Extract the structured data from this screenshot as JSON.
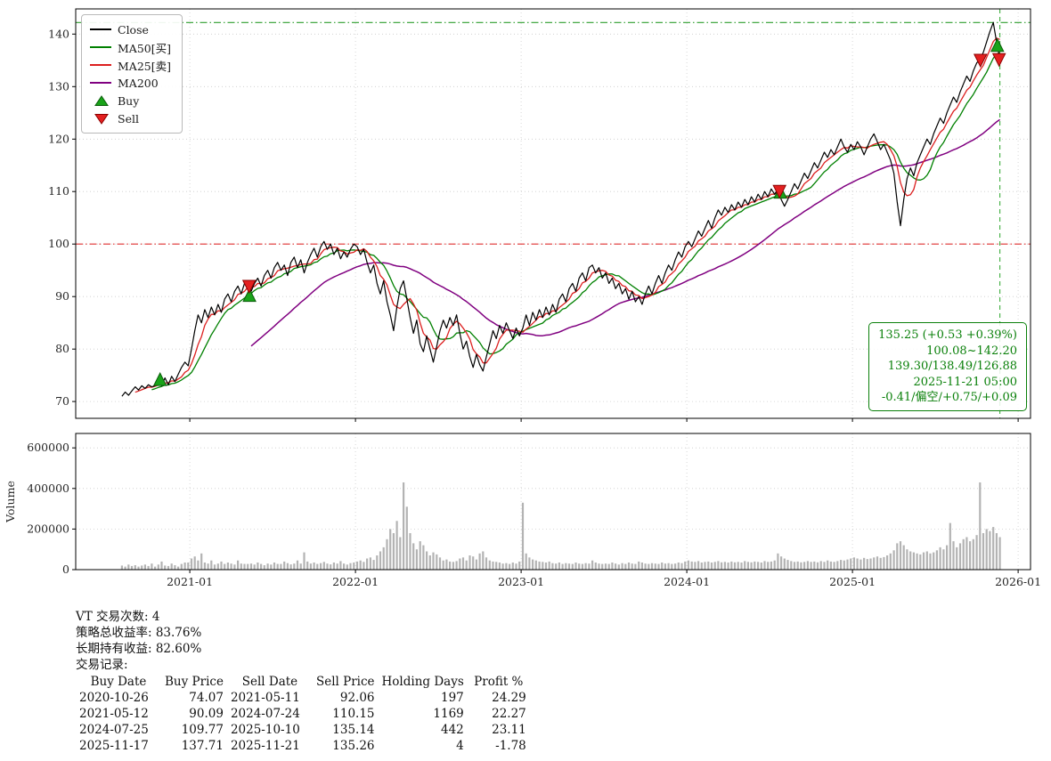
{
  "chart_data": {
    "type": "line",
    "x_axis": {
      "range": [
        2020.311,
        2026.075
      ],
      "ticks": [
        2021,
        2022,
        2023,
        2024,
        2025,
        2026
      ],
      "tick_labels": [
        "2021-01",
        "2022-01",
        "2023-01",
        "2024-01",
        "2025-01",
        "2026-01"
      ]
    },
    "price_axis": {
      "range": [
        66.8,
        144.8
      ],
      "ticks": [
        70,
        80,
        90,
        100,
        110,
        120,
        130,
        140
      ]
    },
    "volume_axis": {
      "range": [
        0,
        671000
      ],
      "ticks": [
        0,
        200000,
        400000,
        600000
      ],
      "tick_labels": [
        "0",
        "200000",
        "400000",
        "600000"
      ],
      "label": "Volume"
    },
    "x_start": 2020.59,
    "x_step": 0.02,
    "volume_scale": 1000,
    "ma_windows": {
      "ma25": 5,
      "ma50": 10,
      "ma200": 40
    },
    "reference_lines": {
      "upper": 142.2,
      "lower": 100.0,
      "vertical_x": 2025.89
    },
    "colors": {
      "close": "#000000",
      "ma50": "#008000",
      "ma25": "#dc1f1f",
      "ma200": "#800080",
      "buy": "#19a319",
      "buy_edge": "#0a5c0a",
      "sell": "#e32020",
      "sell_edge": "#8b0000",
      "volume": "#b3b3b3",
      "ref_upper": "#2e9e2e",
      "ref_lower": "#e03030",
      "vline": "#3faf3f",
      "grid": "#cccccc"
    },
    "legend": [
      {
        "label": "Close",
        "marker": "line",
        "color": "#000000"
      },
      {
        "label": "MA50[买]",
        "marker": "line",
        "color": "#008000"
      },
      {
        "label": "MA25[卖]",
        "marker": "line",
        "color": "#dc1f1f"
      },
      {
        "label": "MA200",
        "marker": "line",
        "color": "#800080"
      },
      {
        "label": "Buy",
        "marker": "triangle-up",
        "color": "#19a319",
        "edge": "#0a5c0a"
      },
      {
        "label": "Sell",
        "marker": "triangle-down",
        "color": "#e32020",
        "edge": "#8b0000"
      }
    ],
    "markers": {
      "buys": [
        [
          2020.82,
          74.07
        ],
        [
          2021.36,
          90.09
        ],
        [
          2024.565,
          109.77
        ],
        [
          2025.875,
          137.71
        ]
      ],
      "sells": [
        [
          2021.358,
          92.06
        ],
        [
          2024.56,
          110.15
        ],
        [
          2025.773,
          135.14
        ],
        [
          2025.885,
          135.26
        ]
      ]
    },
    "annotation": {
      "lines": [
        "135.25 (+0.53 +0.39%)",
        "100.08~142.20",
        "139.30/138.49/126.88",
        "2025-11-21 05:00",
        "-0.41/偏空/+0.75/+0.09"
      ]
    },
    "close": [
      71.0,
      71.8,
      71.2,
      72.0,
      72.8,
      72.2,
      73.0,
      72.5,
      73.2,
      72.8,
      73.0,
      74.2,
      73.0,
      74.5,
      73.2,
      74.8,
      73.8,
      75.2,
      76.5,
      77.5,
      76.8,
      80.0,
      83.5,
      86.5,
      85.0,
      87.5,
      86.0,
      88.0,
      86.5,
      88.5,
      87.0,
      89.5,
      90.5,
      89.0,
      91.0,
      92.0,
      90.5,
      92.5,
      93.0,
      91.0,
      92.5,
      93.5,
      92.0,
      94.0,
      95.0,
      93.5,
      95.5,
      96.5,
      95.0,
      96.0,
      94.0,
      96.5,
      97.5,
      95.5,
      97.0,
      94.5,
      96.5,
      98.0,
      99.2,
      97.5,
      99.5,
      100.5,
      99.0,
      100.0,
      98.0,
      99.2,
      97.2,
      98.5,
      97.5,
      99.0,
      100.0,
      99.5,
      98.0,
      99.0,
      96.5,
      94.5,
      96.0,
      92.5,
      90.5,
      93.0,
      89.0,
      86.5,
      83.5,
      88.0,
      91.5,
      93.0,
      89.5,
      86.0,
      83.0,
      85.5,
      81.0,
      79.5,
      82.5,
      80.0,
      77.5,
      80.5,
      83.5,
      85.5,
      84.0,
      86.0,
      84.5,
      86.5,
      83.0,
      80.0,
      81.5,
      78.5,
      76.5,
      79.0,
      77.0,
      75.8,
      78.5,
      81.0,
      83.5,
      82.0,
      84.5,
      83.0,
      85.0,
      83.5,
      82.0,
      84.0,
      82.5,
      84.0,
      86.5,
      84.5,
      87.0,
      85.5,
      87.5,
      86.0,
      88.0,
      86.5,
      88.5,
      87.0,
      89.5,
      90.5,
      89.0,
      91.5,
      92.5,
      91.0,
      93.5,
      94.5,
      93.0,
      95.5,
      96.0,
      94.5,
      95.5,
      93.5,
      94.5,
      92.5,
      93.5,
      91.5,
      92.5,
      90.5,
      91.5,
      89.5,
      91.0,
      89.0,
      90.0,
      88.5,
      90.5,
      92.0,
      90.5,
      92.5,
      94.0,
      92.5,
      94.5,
      96.0,
      95.0,
      97.0,
      98.5,
      97.5,
      99.5,
      100.5,
      99.5,
      101.0,
      102.5,
      101.5,
      103.0,
      104.5,
      103.0,
      105.0,
      106.5,
      105.5,
      107.0,
      106.0,
      107.5,
      106.5,
      108.0,
      107.0,
      108.5,
      107.5,
      109.0,
      108.0,
      109.5,
      108.5,
      110.0,
      109.0,
      110.5,
      109.5,
      110.5,
      108.5,
      107.2,
      108.5,
      110.0,
      111.5,
      110.5,
      112.0,
      113.5,
      112.5,
      114.0,
      115.5,
      114.5,
      116.0,
      117.5,
      116.5,
      118.0,
      117.0,
      118.5,
      120.0,
      118.5,
      117.5,
      119.0,
      118.0,
      119.5,
      118.5,
      117.0,
      118.5,
      120.0,
      121.0,
      119.5,
      118.0,
      119.0,
      117.5,
      116.0,
      113.5,
      108.0,
      103.5,
      108.5,
      112.5,
      114.5,
      113.0,
      115.5,
      117.0,
      118.5,
      120.0,
      119.0,
      121.0,
      122.5,
      124.0,
      123.0,
      125.0,
      126.5,
      128.0,
      127.0,
      129.0,
      130.5,
      132.0,
      131.0,
      133.0,
      134.5,
      135.2,
      136.5,
      138.5,
      140.5,
      142.2,
      138.5,
      135.25
    ],
    "volume_thousands": [
      20,
      15,
      25,
      18,
      22,
      15,
      20,
      25,
      18,
      30,
      15,
      25,
      40,
      20,
      18,
      30,
      22,
      15,
      28,
      35,
      35,
      55,
      65,
      45,
      80,
      35,
      30,
      45,
      25,
      30,
      40,
      28,
      35,
      30,
      25,
      45,
      30,
      28,
      28,
      30,
      25,
      35,
      28,
      22,
      30,
      25,
      35,
      28,
      28,
      40,
      32,
      26,
      30,
      45,
      30,
      85,
      40,
      30,
      35,
      28,
      32,
      38,
      30,
      26,
      35,
      30,
      42,
      30,
      25,
      32,
      35,
      40,
      45,
      38,
      55,
      60,
      48,
      70,
      90,
      110,
      150,
      200,
      180,
      240,
      160,
      430,
      310,
      180,
      130,
      100,
      140,
      120,
      90,
      70,
      85,
      75,
      60,
      45,
      50,
      40,
      38,
      42,
      55,
      60,
      45,
      70,
      65,
      50,
      80,
      90,
      60,
      45,
      40,
      38,
      35,
      30,
      32,
      28,
      35,
      30,
      40,
      330,
      80,
      60,
      50,
      45,
      40,
      38,
      35,
      40,
      32,
      30,
      35,
      28,
      32,
      30,
      28,
      35,
      30,
      28,
      32,
      30,
      45,
      35,
      30,
      28,
      30,
      28,
      35,
      30,
      25,
      32,
      28,
      35,
      30,
      28,
      40,
      35,
      30,
      28,
      32,
      30,
      28,
      35,
      30,
      32,
      28,
      30,
      35,
      32,
      40,
      45,
      40,
      38,
      42,
      35,
      38,
      40,
      35,
      38,
      42,
      36,
      38,
      35,
      40,
      36,
      38,
      35,
      42,
      38,
      36,
      40,
      38,
      35,
      42,
      38,
      40,
      45,
      80,
      65,
      55,
      48,
      42,
      38,
      40,
      36,
      38,
      42,
      38,
      40,
      36,
      42,
      38,
      45,
      40,
      38,
      42,
      48,
      45,
      50,
      55,
      60,
      55,
      50,
      58,
      52,
      55,
      60,
      65,
      58,
      62,
      70,
      80,
      95,
      130,
      140,
      120,
      100,
      90,
      85,
      80,
      75,
      85,
      90,
      80,
      85,
      95,
      110,
      100,
      120,
      230,
      140,
      110,
      130,
      150,
      160,
      140,
      150,
      170,
      430,
      180,
      200,
      190,
      210,
      180,
      160
    ]
  },
  "stats": {
    "trade_count": "VT 交易次数: 4",
    "total_return": "策略总收益率: 83.76%",
    "hold_return": "长期持有收益: 82.60%",
    "records_title": "交易记录:"
  },
  "trades": {
    "headers": [
      "Buy Date",
      "Buy Price",
      "Sell Date",
      "Sell Price",
      "Holding Days",
      "Profit %"
    ],
    "rows": [
      [
        "2020-10-26",
        "74.07",
        "2021-05-11",
        "92.06",
        "197",
        "24.29"
      ],
      [
        "2021-05-12",
        "90.09",
        "2024-07-24",
        "110.15",
        "1169",
        "22.27"
      ],
      [
        "2024-07-25",
        "109.77",
        "2025-10-10",
        "135.14",
        "442",
        "23.11"
      ],
      [
        "2025-11-17",
        "137.71",
        "2025-11-21",
        "135.26",
        "4",
        "-1.78"
      ]
    ]
  }
}
